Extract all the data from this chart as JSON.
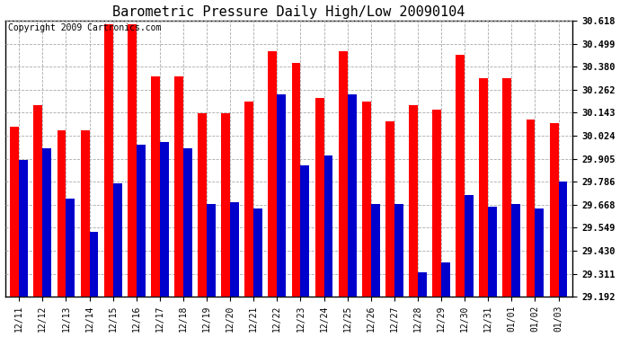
{
  "title": "Barometric Pressure Daily High/Low 20090104",
  "copyright": "Copyright 2009 Cartronics.com",
  "categories": [
    "12/11",
    "12/12",
    "12/13",
    "12/14",
    "12/15",
    "12/16",
    "12/17",
    "12/18",
    "12/19",
    "12/20",
    "12/21",
    "12/22",
    "12/23",
    "12/24",
    "12/25",
    "12/26",
    "12/27",
    "12/28",
    "12/29",
    "12/30",
    "12/31",
    "01/01",
    "01/02",
    "01/03"
  ],
  "highs": [
    30.07,
    30.18,
    30.05,
    30.05,
    30.6,
    30.6,
    30.33,
    30.33,
    30.14,
    30.14,
    30.2,
    30.46,
    30.4,
    30.22,
    30.46,
    30.2,
    30.1,
    30.18,
    30.16,
    30.44,
    30.32,
    30.32,
    30.11,
    30.09
  ],
  "lows": [
    29.9,
    29.96,
    29.7,
    29.53,
    29.78,
    29.98,
    29.99,
    29.96,
    29.67,
    29.68,
    29.65,
    30.24,
    29.87,
    29.92,
    30.24,
    29.67,
    29.67,
    29.32,
    29.37,
    29.72,
    29.66,
    29.67,
    29.65,
    29.79
  ],
  "ymin": 29.192,
  "ymax": 30.618,
  "yticks": [
    29.192,
    29.311,
    29.43,
    29.549,
    29.668,
    29.786,
    29.905,
    30.024,
    30.143,
    30.262,
    30.38,
    30.499,
    30.618
  ],
  "high_color": "#ff0000",
  "low_color": "#0000cc",
  "bg_color": "#ffffff",
  "grid_color": "#aaaaaa",
  "title_fontsize": 11,
  "copyright_fontsize": 7
}
